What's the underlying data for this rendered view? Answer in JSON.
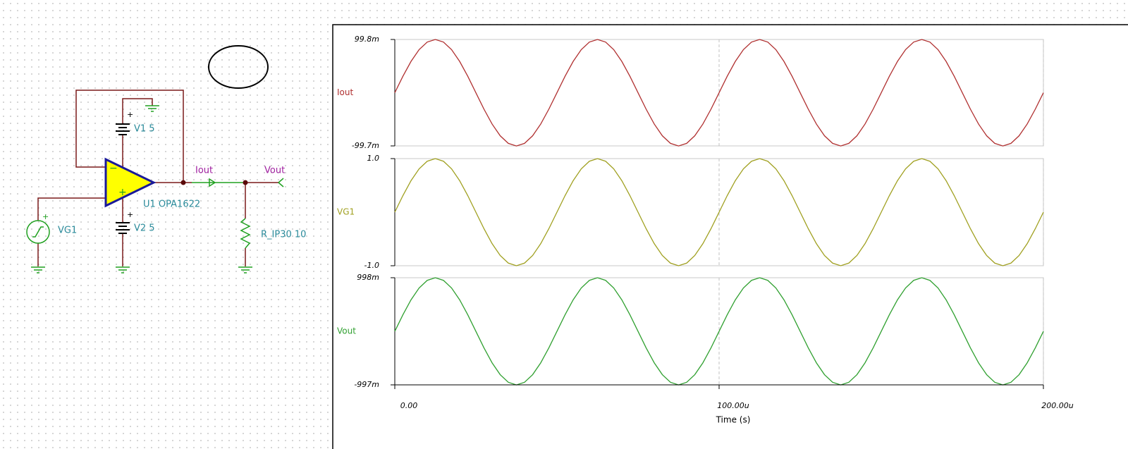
{
  "schematic": {
    "labels": {
      "v1": "V1 5",
      "v2": "V2 5",
      "opamp": "U1 OPA1622",
      "source": "VG1",
      "iout": "Iout",
      "vout": "Vout",
      "resistor": "R_IP30 10"
    }
  },
  "chart_data": [
    {
      "type": "line",
      "x": [
        0,
        2.5e-06,
        5e-06,
        7.5e-06,
        1e-05,
        1.25e-05,
        1.5e-05,
        1.75e-05,
        2e-05,
        2.25e-05,
        2.5e-05,
        2.75e-05,
        3e-05,
        3.25e-05,
        3.5e-05,
        3.75e-05,
        4e-05,
        4.25e-05,
        4.5e-05,
        4.75e-05,
        5e-05,
        5.25e-05,
        5.5e-05,
        5.75e-05,
        6e-05,
        6.25e-05,
        6.5e-05,
        6.75e-05,
        7e-05,
        7.25e-05,
        7.5e-05,
        7.75e-05,
        8e-05,
        8.25e-05,
        8.5e-05,
        8.75e-05,
        9e-05,
        9.25e-05,
        9.5e-05,
        9.75e-05,
        0.0001,
        0.0001025,
        0.000105,
        0.0001075,
        0.00011,
        0.0001125,
        0.000115,
        0.0001175,
        0.00012,
        0.0001225,
        0.000125,
        0.0001275,
        0.00013,
        0.0001325,
        0.000135,
        0.0001375,
        0.00014,
        0.0001425,
        0.000145,
        0.0001475,
        0.00015,
        0.0001525,
        0.000155,
        0.0001575,
        0.00016,
        0.0001625,
        0.000165,
        0.0001675,
        0.00017,
        0.0001725,
        0.000175,
        0.0001775,
        0.00018,
        0.0001825,
        0.000185,
        0.0001875,
        0.00019,
        0.0001925,
        0.000195,
        0.0001975,
        0.0002
      ],
      "xlim": [
        0,
        0.0002
      ],
      "ylim": [
        -0.0997,
        0.0998
      ],
      "yticks": [
        {
          "value": 0.0998,
          "label": "99.8m"
        },
        {
          "value": -0.0997,
          "label": "-99.7m"
        }
      ],
      "series": [
        {
          "name": "Iout",
          "color": "#b03030",
          "values": [
            0,
            0.03084,
            0.05866,
            0.08074,
            0.09492,
            0.0998,
            0.09492,
            0.08074,
            0.05866,
            0.03084,
            0,
            -0.03084,
            -0.05866,
            -0.08074,
            -0.09492,
            -0.0998,
            -0.09492,
            -0.08074,
            -0.05866,
            -0.03084,
            0,
            0.03084,
            0.05866,
            0.08074,
            0.09492,
            0.0998,
            0.09492,
            0.08074,
            0.05866,
            0.03084,
            0,
            -0.03084,
            -0.05866,
            -0.08074,
            -0.09492,
            -0.0998,
            -0.09492,
            -0.08074,
            -0.05866,
            -0.03084,
            0,
            0.03084,
            0.05866,
            0.08074,
            0.09492,
            0.0998,
            0.09492,
            0.08074,
            0.05866,
            0.03084,
            0,
            -0.03084,
            -0.05866,
            -0.08074,
            -0.09492,
            -0.0998,
            -0.09492,
            -0.08074,
            -0.05866,
            -0.03084,
            0,
            0.03084,
            0.05866,
            0.08074,
            0.09492,
            0.0998,
            0.09492,
            0.08074,
            0.05866,
            0.03084,
            0,
            -0.03084,
            -0.05866,
            -0.08074,
            -0.09492,
            -0.0998,
            -0.09492,
            -0.08074,
            -0.05866,
            -0.03084,
            0
          ]
        }
      ]
    },
    {
      "type": "line",
      "x": [
        0,
        2.5e-06,
        5e-06,
        7.5e-06,
        1e-05,
        1.25e-05,
        1.5e-05,
        1.75e-05,
        2e-05,
        2.25e-05,
        2.5e-05,
        2.75e-05,
        3e-05,
        3.25e-05,
        3.5e-05,
        3.75e-05,
        4e-05,
        4.25e-05,
        4.5e-05,
        4.75e-05,
        5e-05,
        5.25e-05,
        5.5e-05,
        5.75e-05,
        6e-05,
        6.25e-05,
        6.5e-05,
        6.75e-05,
        7e-05,
        7.25e-05,
        7.5e-05,
        7.75e-05,
        8e-05,
        8.25e-05,
        8.5e-05,
        8.75e-05,
        9e-05,
        9.25e-05,
        9.5e-05,
        9.75e-05,
        0.0001,
        0.0001025,
        0.000105,
        0.0001075,
        0.00011,
        0.0001125,
        0.000115,
        0.0001175,
        0.00012,
        0.0001225,
        0.000125,
        0.0001275,
        0.00013,
        0.0001325,
        0.000135,
        0.0001375,
        0.00014,
        0.0001425,
        0.000145,
        0.0001475,
        0.00015,
        0.0001525,
        0.000155,
        0.0001575,
        0.00016,
        0.0001625,
        0.000165,
        0.0001675,
        0.00017,
        0.0001725,
        0.000175,
        0.0001775,
        0.00018,
        0.0001825,
        0.000185,
        0.0001875,
        0.00019,
        0.0001925,
        0.000195,
        0.0001975,
        0.0002
      ],
      "xlim": [
        0,
        0.0002
      ],
      "ylim": [
        -1,
        1
      ],
      "yticks": [
        {
          "value": 1,
          "label": "1.0"
        },
        {
          "value": -1,
          "label": "-1.0"
        }
      ],
      "series": [
        {
          "name": "VG1",
          "color": "#a0a020",
          "values": [
            0,
            0.309,
            0.5878,
            0.809,
            0.9511,
            1,
            0.9511,
            0.809,
            0.5878,
            0.309,
            0,
            -0.309,
            -0.5878,
            -0.809,
            -0.9511,
            -1,
            -0.9511,
            -0.809,
            -0.5878,
            -0.309,
            0,
            0.309,
            0.5878,
            0.809,
            0.9511,
            1,
            0.9511,
            0.809,
            0.5878,
            0.309,
            0,
            -0.309,
            -0.5878,
            -0.809,
            -0.9511,
            -1,
            -0.9511,
            -0.809,
            -0.5878,
            -0.309,
            0,
            0.309,
            0.5878,
            0.809,
            0.9511,
            1,
            0.9511,
            0.809,
            0.5878,
            0.309,
            0,
            -0.309,
            -0.5878,
            -0.809,
            -0.9511,
            -1,
            -0.9511,
            -0.809,
            -0.5878,
            -0.309,
            0,
            0.309,
            0.5878,
            0.809,
            0.9511,
            1,
            0.9511,
            0.809,
            0.5878,
            0.309,
            0,
            -0.309,
            -0.5878,
            -0.809,
            -0.9511,
            -1,
            -0.9511,
            -0.809,
            -0.5878,
            -0.309,
            0
          ]
        }
      ]
    },
    {
      "type": "line",
      "x": [
        0,
        2.5e-06,
        5e-06,
        7.5e-06,
        1e-05,
        1.25e-05,
        1.5e-05,
        1.75e-05,
        2e-05,
        2.25e-05,
        2.5e-05,
        2.75e-05,
        3e-05,
        3.25e-05,
        3.5e-05,
        3.75e-05,
        4e-05,
        4.25e-05,
        4.5e-05,
        4.75e-05,
        5e-05,
        5.25e-05,
        5.5e-05,
        5.75e-05,
        6e-05,
        6.25e-05,
        6.5e-05,
        6.75e-05,
        7e-05,
        7.25e-05,
        7.5e-05,
        7.75e-05,
        8e-05,
        8.25e-05,
        8.5e-05,
        8.75e-05,
        9e-05,
        9.25e-05,
        9.5e-05,
        9.75e-05,
        0.0001,
        0.0001025,
        0.000105,
        0.0001075,
        0.00011,
        0.0001125,
        0.000115,
        0.0001175,
        0.00012,
        0.0001225,
        0.000125,
        0.0001275,
        0.00013,
        0.0001325,
        0.000135,
        0.0001375,
        0.00014,
        0.0001425,
        0.000145,
        0.0001475,
        0.00015,
        0.0001525,
        0.000155,
        0.0001575,
        0.00016,
        0.0001625,
        0.000165,
        0.0001675,
        0.00017,
        0.0001725,
        0.000175,
        0.0001775,
        0.00018,
        0.0001825,
        0.000185,
        0.0001875,
        0.00019,
        0.0001925,
        0.000195,
        0.0001975,
        0.0002
      ],
      "xlim": [
        0,
        0.0002
      ],
      "xticks": [
        {
          "value": 0,
          "label": "0.00"
        },
        {
          "value": 0.0001,
          "label": "100.00u"
        },
        {
          "value": 0.0002,
          "label": "200.00u"
        }
      ],
      "xlabel": "Time (s)",
      "ylim": [
        -0.997,
        0.998
      ],
      "yticks": [
        {
          "value": 0.998,
          "label": "998m"
        },
        {
          "value": -0.997,
          "label": "-997m"
        }
      ],
      "series": [
        {
          "name": "Vout",
          "color": "#30a030",
          "values": [
            0,
            0.3084,
            0.5866,
            0.8074,
            0.9492,
            0.998,
            0.9492,
            0.8074,
            0.5866,
            0.3084,
            0,
            -0.3084,
            -0.5866,
            -0.8074,
            -0.9492,
            -0.998,
            -0.9492,
            -0.8074,
            -0.5866,
            -0.3084,
            0,
            0.3084,
            0.5866,
            0.8074,
            0.9492,
            0.998,
            0.9492,
            0.8074,
            0.5866,
            0.3084,
            0,
            -0.3084,
            -0.5866,
            -0.8074,
            -0.9492,
            -0.998,
            -0.9492,
            -0.8074,
            -0.5866,
            -0.3084,
            0,
            0.3084,
            0.5866,
            0.8074,
            0.9492,
            0.998,
            0.9492,
            0.8074,
            0.5866,
            0.3084,
            0,
            -0.3084,
            -0.5866,
            -0.8074,
            -0.9492,
            -0.998,
            -0.9492,
            -0.8074,
            -0.5866,
            -0.3084,
            0,
            0.3084,
            0.5866,
            0.8074,
            0.9492,
            0.998,
            0.9492,
            0.8074,
            0.5866,
            0.3084,
            0,
            -0.3084,
            -0.5866,
            -0.8074,
            -0.9492,
            -0.998,
            -0.9492,
            -0.8074,
            -0.5866,
            -0.3084,
            0
          ]
        }
      ]
    }
  ]
}
